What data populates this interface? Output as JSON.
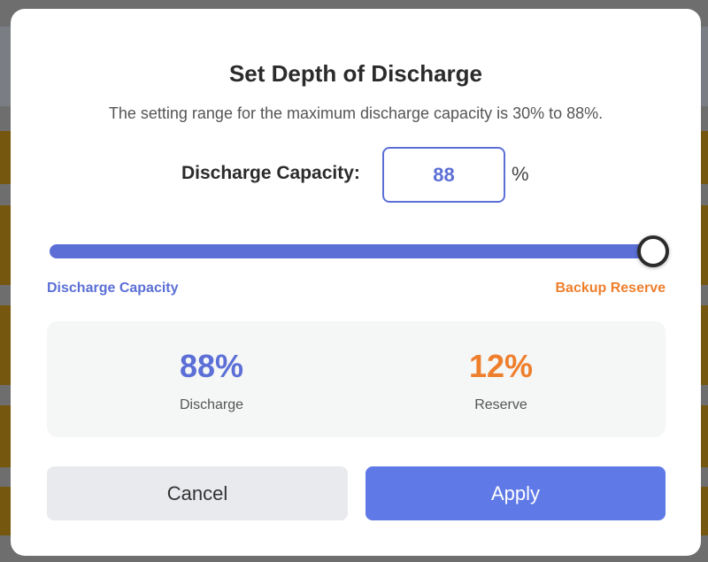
{
  "dialog": {
    "title": "Set Depth of Discharge",
    "subtitle": "The setting range for the maximum discharge capacity is 30% to 88%.",
    "capacity_label": "Discharge Capacity:",
    "capacity_value": "88",
    "unit": "%",
    "slider": {
      "min": 30,
      "max": 88,
      "value": 88,
      "left_label": "Discharge Capacity",
      "right_label": "Backup Reserve"
    },
    "stats": {
      "discharge_value": "88%",
      "discharge_caption": "Discharge",
      "reserve_value": "12%",
      "reserve_caption": "Reserve"
    },
    "cancel_label": "Cancel",
    "apply_label": "Apply"
  },
  "colors": {
    "accent": "#5b6fd6",
    "reserve": "#ee7f2d",
    "apply": "#5f79e6"
  }
}
